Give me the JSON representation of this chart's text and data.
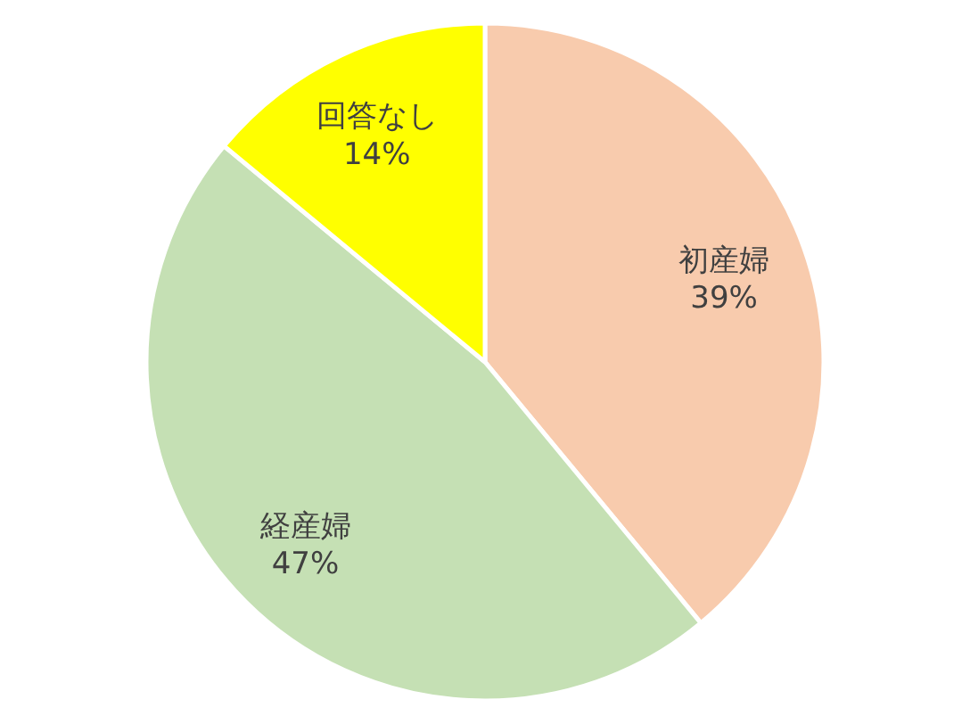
{
  "chart_data": {
    "type": "pie",
    "categories": [
      "初産婦",
      "経産婦",
      "回答なし"
    ],
    "values": [
      39,
      47,
      14
    ],
    "colors": [
      "#f8cbad",
      "#c5e0b4",
      "#ffff00"
    ],
    "value_labels": [
      "39%",
      "47%",
      "14%"
    ]
  }
}
